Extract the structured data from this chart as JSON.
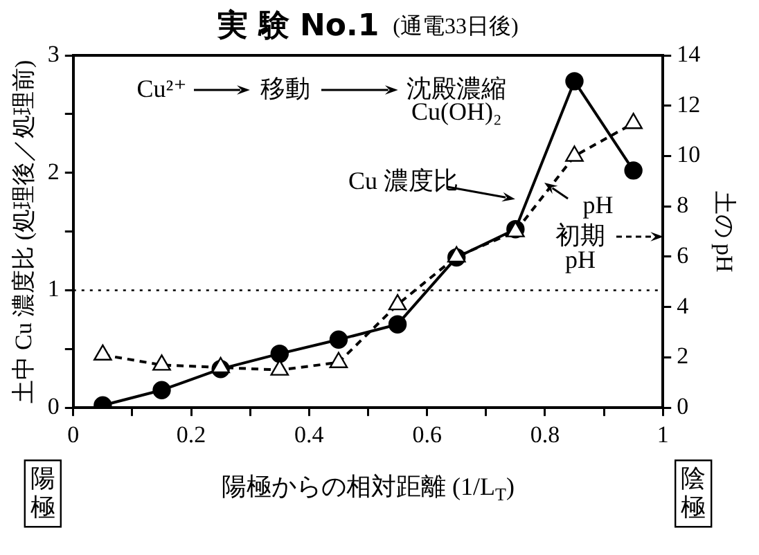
{
  "chart_data": {
    "type": "line",
    "title": "実 験 No.1",
    "subtitle": "(通電33日後)",
    "xlabel": "陽極からの相対距離 (1/L$_{T}$)",
    "ylabel": "土中 Cu 濃度比 (処理後／処理前)",
    "y2label": "土の pH",
    "x": [
      0.05,
      0.15,
      0.25,
      0.35,
      0.45,
      0.55,
      0.65,
      0.75,
      0.85,
      0.95
    ],
    "series": [
      {
        "color": "#000000",
        "marker": "circle",
        "line_style": "solid",
        "values": [
          0.02,
          0.15,
          0.33,
          0.46,
          0.58,
          0.71,
          1.28,
          1.52,
          2.78,
          2.02
        ]
      },
      {
        "color": "#000000",
        "marker": "triangle",
        "line_style": "dashed",
        "axis": "y2",
        "values": [
          2.1,
          1.7,
          1.6,
          1.5,
          1.8,
          4.1,
          6.0,
          7.0,
          10.0,
          11.3
        ]
      }
    ],
    "xlim": [
      0,
      1
    ],
    "xticks": [
      0,
      {
        "value": 0.1,
        "label": null
      },
      0.2,
      {
        "value": 0.3,
        "label": null
      },
      0.4,
      {
        "value": 0.5,
        "label": null
      },
      0.6,
      {
        "value": 0.7,
        "label": null
      },
      0.8,
      {
        "value": 0.9,
        "label": null
      },
      1
    ],
    "ylim": [
      0,
      3
    ],
    "yticks": [
      0,
      {
        "value": 0.5,
        "label": null
      },
      1,
      {
        "value": 1.5,
        "label": null
      },
      2,
      {
        "value": 2.5,
        "label": null
      },
      3
    ],
    "y2lim": [
      0,
      14
    ],
    "y2ticks": [
      0,
      2,
      4,
      6,
      8,
      10,
      12,
      14
    ],
    "ref_lines": [
      {
        "axis": "y",
        "value": 1,
        "line_style": "dotted",
        "color": "#000000"
      }
    ],
    "annotations": [
      "Cu²⁺",
      "移動",
      "沈殿濃縮",
      "Cu(OH)₂",
      "Cu 濃度比",
      "pH",
      "初期",
      "pH",
      "陽極",
      "陰極"
    ],
    "grid": false,
    "legend": false
  }
}
